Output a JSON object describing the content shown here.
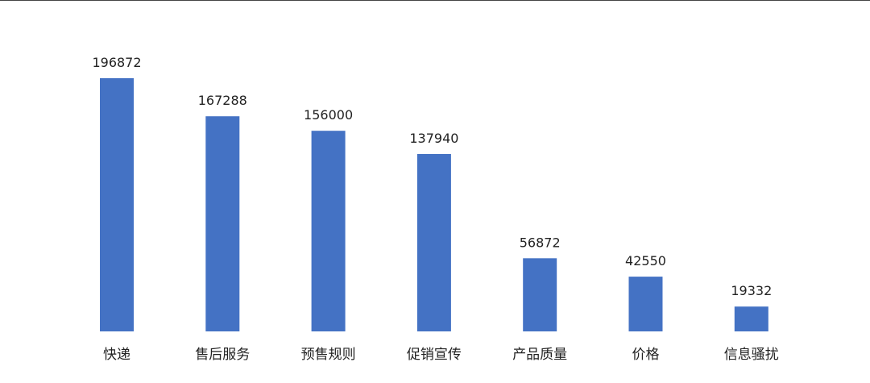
{
  "chart_data": {
    "type": "bar",
    "categories": [
      "快递",
      "售后服务",
      "预售规则",
      "促销宣传",
      "产品质量",
      "价格",
      "信息骚扰"
    ],
    "values": [
      196872,
      167288,
      156000,
      137940,
      56872,
      42550,
      19332
    ],
    "data_labels": [
      "196872",
      "167288",
      "156000",
      "137940",
      "56872",
      "42550",
      "19332"
    ],
    "ylim": [
      0,
      200000
    ],
    "bar_color": "#4472C4",
    "grid": false,
    "legend": "none"
  }
}
